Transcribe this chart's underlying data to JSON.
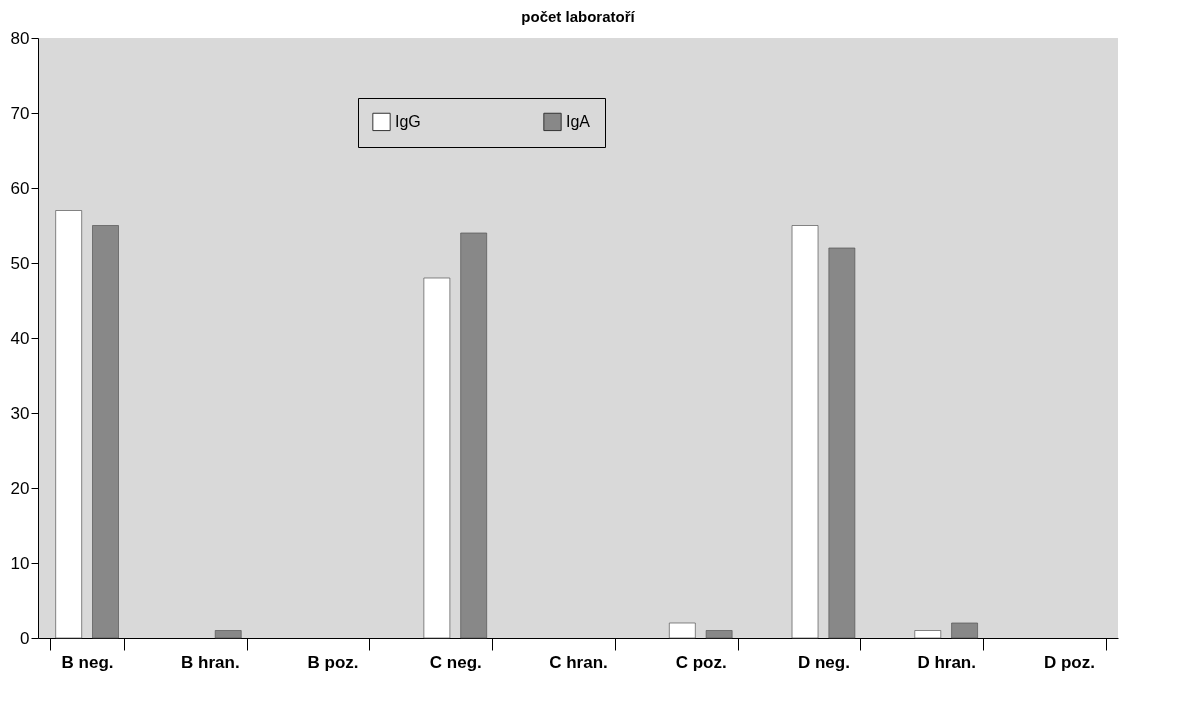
{
  "chart_data": {
    "type": "bar",
    "title": "počet laboratoří",
    "categories": [
      "B neg.",
      "B hran.",
      "B poz.",
      "C neg.",
      "C hran.",
      "C poz.",
      "D neg.",
      "D hran.",
      "D poz."
    ],
    "series": [
      {
        "name": "IgG",
        "color": "#ffffff",
        "values": [
          57,
          0,
          0,
          48,
          0,
          2,
          55,
          1,
          0
        ]
      },
      {
        "name": "IgA",
        "color": "#888888",
        "values": [
          55,
          1,
          0,
          54,
          0,
          1,
          52,
          2,
          0
        ]
      }
    ],
    "ylim": [
      0,
      80
    ],
    "yticks": [
      0,
      10,
      20,
      30,
      40,
      50,
      60,
      70,
      80
    ],
    "grid": false,
    "legend": "top"
  }
}
